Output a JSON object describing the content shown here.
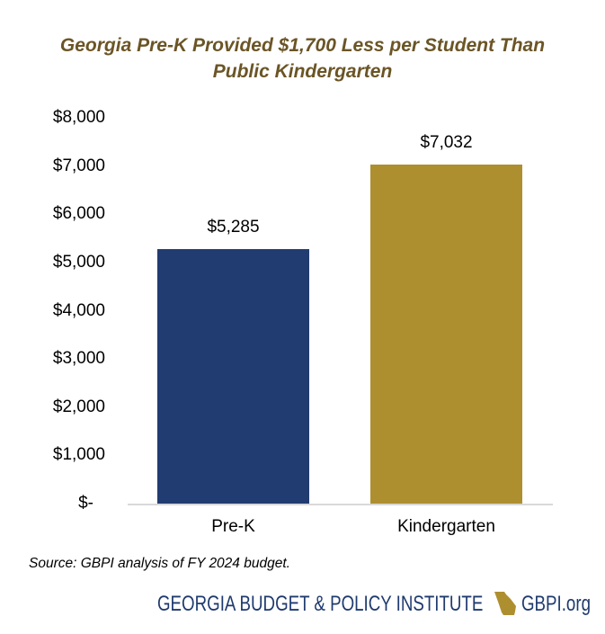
{
  "title_line1": "Georgia Pre-K Provided $1,700 Less per Student Than",
  "title_line2": "Public Kindergarten",
  "source": "Source: GBPI analysis of FY 2024 budget.",
  "branding": {
    "org_name": "GEORGIA BUDGET & POLICY INSTITUTE",
    "icon": "georgia-state-map-icon",
    "domain": "GBPI.org",
    "text_color": "#1f3a6e",
    "icon_color": "#ae8f30"
  },
  "chart_data": {
    "type": "bar",
    "title": "Georgia Pre-K Provided $1,700 Less per Student Than Public Kindergarten",
    "categories": [
      "Pre-K",
      "Kindergarten"
    ],
    "values": [
      5285,
      7032
    ],
    "data_labels": [
      "$5,285",
      "$7,032"
    ],
    "colors": [
      "#213c70",
      "#ae8f30"
    ],
    "xlabel": "",
    "ylabel": "",
    "ylim": [
      0,
      8000
    ],
    "yticks": [
      0,
      1000,
      2000,
      3000,
      4000,
      5000,
      6000,
      7000,
      8000
    ],
    "ytick_labels": [
      "$-",
      "$1,000",
      "$2,000",
      "$3,000",
      "$4,000",
      "$5,000",
      "$6,000",
      "$7,000",
      "$8,000"
    ],
    "grid": false,
    "legend": "none",
    "source": "Source: GBPI analysis of FY 2024 budget."
  }
}
